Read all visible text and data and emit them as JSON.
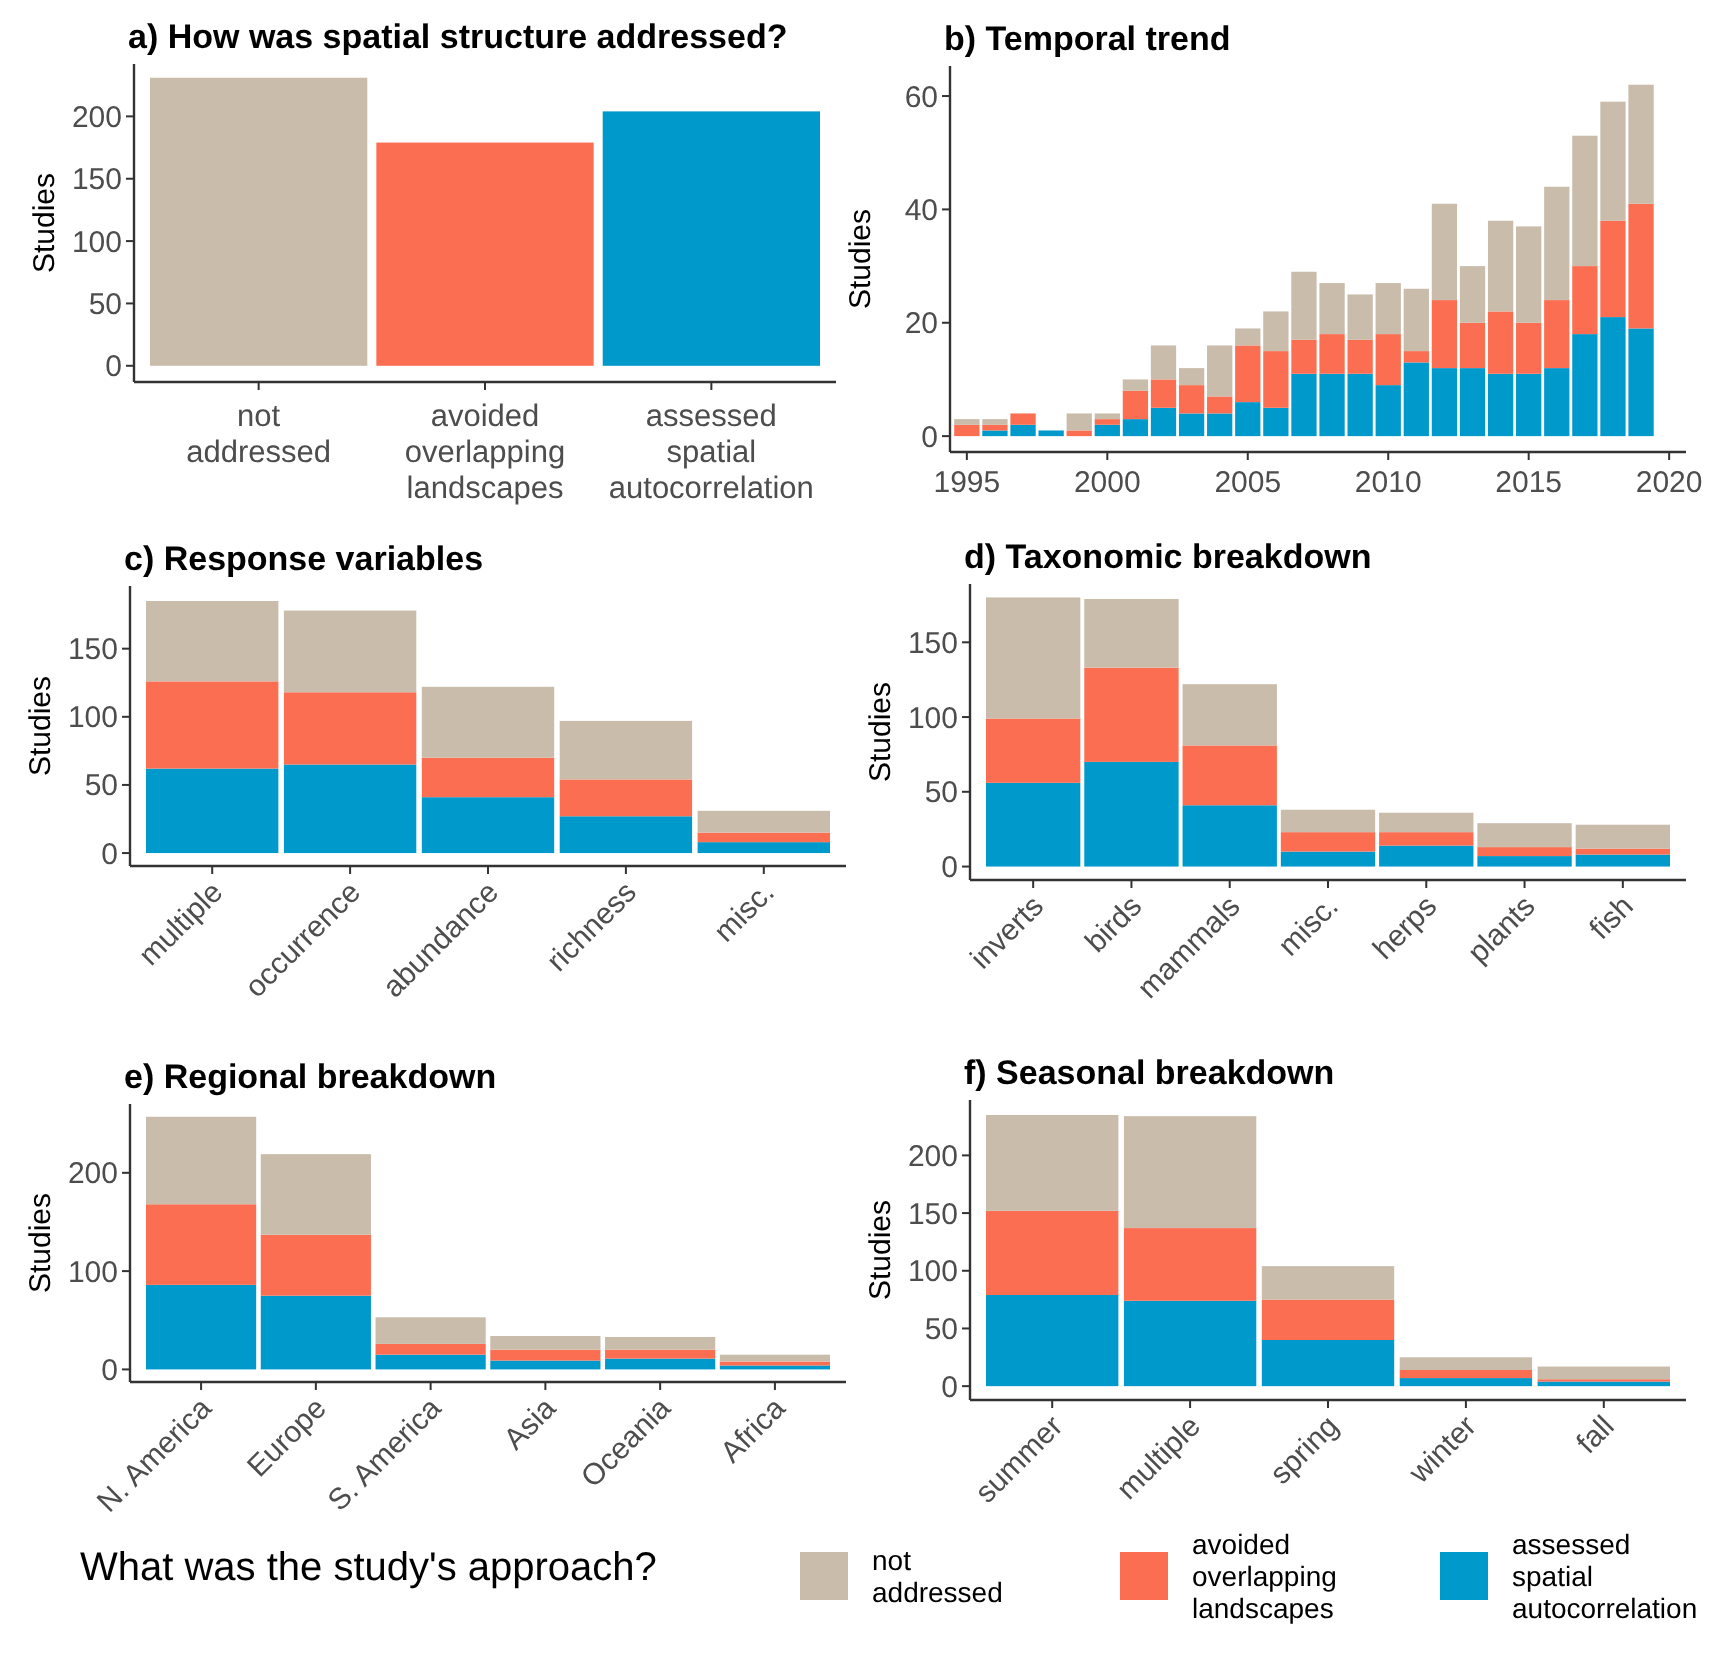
{
  "chart_data": [
    {
      "type": "bar",
      "title": "a) How was spatial structure addressed?",
      "ylabel": "Studies",
      "categories": [
        "not addressed",
        "avoided overlapping landscapes",
        "assessed spatial autocorrelation"
      ],
      "values": [
        231,
        179,
        204
      ],
      "colors": [
        "#c9bcab",
        "#fc6e51",
        "#0099cc"
      ],
      "ylim": [
        -13,
        242
      ],
      "yticks": [
        0,
        50,
        100,
        150,
        200
      ]
    },
    {
      "type": "bar",
      "title": "b) Temporal trend",
      "ylabel": "Studies",
      "stacked": true,
      "x": [
        1995,
        1996,
        1997,
        1998,
        1999,
        2000,
        2001,
        2002,
        2003,
        2004,
        2005,
        2006,
        2007,
        2008,
        2009,
        2010,
        2011,
        2012,
        2013,
        2014,
        2015,
        2016,
        2017,
        2018,
        2019
      ],
      "xlim": [
        1994.4,
        2020.6
      ],
      "xticks": [
        1995,
        2000,
        2005,
        2010,
        2015,
        2020
      ],
      "ylim": [
        -2.8,
        65.3
      ],
      "yticks": [
        0,
        20,
        40,
        60
      ],
      "series": [
        {
          "color": "#0099cc",
          "values": [
            0,
            1,
            2,
            1,
            0,
            2,
            3,
            5,
            4,
            4,
            6,
            5,
            11,
            11,
            11,
            9,
            13,
            12,
            12,
            11,
            11,
            12,
            18,
            21,
            19
          ]
        },
        {
          "color": "#fc6e51",
          "values": [
            2,
            1,
            2,
            0,
            1,
            1,
            5,
            5,
            5,
            3,
            10,
            10,
            6,
            7,
            6,
            9,
            2,
            12,
            8,
            11,
            9,
            12,
            12,
            17,
            22
          ]
        },
        {
          "color": "#c9bcab",
          "values": [
            1,
            1,
            0,
            0,
            3,
            1,
            2,
            6,
            3,
            9,
            3,
            7,
            12,
            9,
            8,
            9,
            11,
            17,
            10,
            16,
            17,
            20,
            23,
            21,
            21
          ]
        }
      ]
    },
    {
      "type": "bar",
      "title": "c) Response variables",
      "ylabel": "Studies",
      "stacked": true,
      "categories": [
        "multiple",
        "occurrence",
        "abundance",
        "richness",
        "misc."
      ],
      "ylim": [
        -9.5,
        196
      ],
      "yticks": [
        0,
        50,
        100,
        150
      ],
      "series": [
        {
          "color": "#0099cc",
          "values": [
            62,
            65,
            41,
            27,
            8
          ]
        },
        {
          "color": "#fc6e51",
          "values": [
            64,
            53,
            29,
            27,
            7
          ]
        },
        {
          "color": "#c9bcab",
          "values": [
            59,
            60,
            52,
            43,
            16
          ]
        }
      ]
    },
    {
      "type": "bar",
      "title": "d) Taxonomic breakdown",
      "ylabel": "Studies",
      "stacked": true,
      "categories": [
        "inverts",
        "birds",
        "mammals",
        "misc.",
        "herps",
        "plants",
        "fish"
      ],
      "ylim": [
        -9,
        189
      ],
      "yticks": [
        0,
        50,
        100,
        150
      ],
      "series": [
        {
          "color": "#0099cc",
          "values": [
            56,
            70,
            41,
            10,
            14,
            7,
            8
          ]
        },
        {
          "color": "#fc6e51",
          "values": [
            43,
            63,
            40,
            13,
            9,
            6,
            4
          ]
        },
        {
          "color": "#c9bcab",
          "values": [
            81,
            46,
            41,
            15,
            13,
            16,
            16
          ]
        }
      ]
    },
    {
      "type": "bar",
      "title": "e) Regional breakdown",
      "ylabel": "Studies",
      "stacked": true,
      "categories": [
        "N. America",
        "Europe",
        "S. America",
        "Asia",
        "Oceania",
        "Africa"
      ],
      "ylim": [
        -12.8,
        270
      ],
      "yticks": [
        0,
        100,
        200
      ],
      "series": [
        {
          "color": "#0099cc",
          "values": [
            86,
            75,
            15,
            9,
            11,
            4
          ]
        },
        {
          "color": "#fc6e51",
          "values": [
            82,
            62,
            11,
            11,
            9,
            4
          ]
        },
        {
          "color": "#c9bcab",
          "values": [
            89,
            82,
            27,
            14,
            13,
            7
          ]
        }
      ]
    },
    {
      "type": "bar",
      "title": "f) Seasonal breakdown",
      "ylabel": "Studies",
      "stacked": true,
      "categories": [
        "summer",
        "multiple",
        "spring",
        "winter",
        "fall"
      ],
      "ylim": [
        -12,
        248
      ],
      "yticks": [
        0,
        50,
        100,
        150,
        200
      ],
      "legend": "bottom",
      "legend_title": "What was the study's approach?",
      "series": [
        {
          "name": "assessed spatial autocorrelation",
          "color": "#0099cc",
          "values": [
            79,
            74,
            40,
            7,
            4
          ]
        },
        {
          "name": "avoided overlapping landscapes",
          "color": "#fc6e51",
          "values": [
            73,
            63,
            35,
            7,
            2
          ]
        },
        {
          "name": "not addressed",
          "color": "#c9bcab",
          "values": [
            83,
            97,
            29,
            11,
            11
          ]
        }
      ]
    }
  ]
}
